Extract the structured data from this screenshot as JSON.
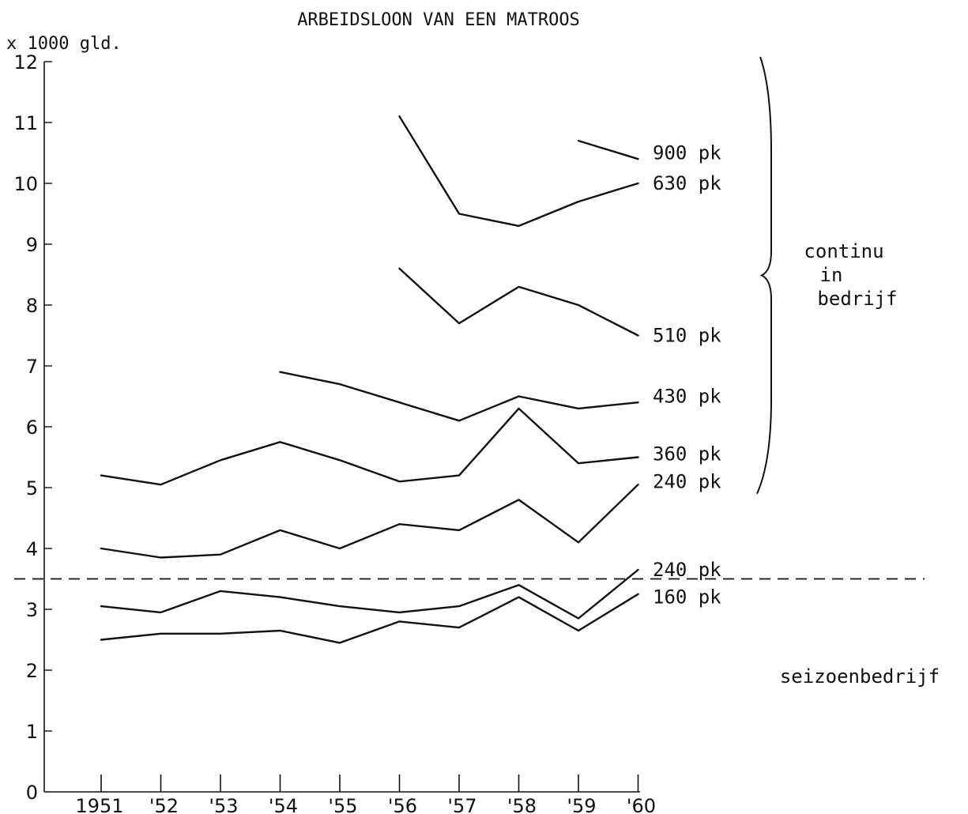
{
  "chart_data": {
    "type": "line",
    "title": "ARBEIDSLOON VAN EEN MATROOS",
    "ylabel": "x 1000 gld.",
    "xlabel": "",
    "ylim": [
      0,
      12
    ],
    "yticks": [
      0,
      1,
      2,
      3,
      4,
      5,
      6,
      7,
      8,
      9,
      10,
      11,
      12
    ],
    "categories": [
      "1951",
      "'52",
      "'53",
      "'54",
      "'55",
      "'56",
      "'57",
      "'58",
      "'59",
      "'60"
    ],
    "grid": false,
    "reference_line": {
      "value": 3.5,
      "style": "dashed"
    },
    "series": [
      {
        "name": "900 pk",
        "values": [
          null,
          null,
          null,
          null,
          null,
          11.1,
          9.5,
          9.3,
          9.7,
          10.0
        ]
      },
      {
        "name": "630 pk",
        "values": [
          null,
          null,
          null,
          null,
          null,
          null,
          null,
          null,
          10.7,
          10.4
        ]
      },
      {
        "name": "510 pk",
        "values": [
          null,
          null,
          null,
          null,
          null,
          8.6,
          7.7,
          8.3,
          8.0,
          7.5
        ]
      },
      {
        "name": "430 pk",
        "values": [
          null,
          null,
          null,
          6.9,
          6.7,
          6.4,
          6.1,
          6.5,
          6.3,
          6.4
        ]
      },
      {
        "name": "360 pk",
        "values": [
          5.2,
          5.05,
          5.45,
          5.75,
          5.45,
          5.1,
          5.2,
          6.3,
          5.4,
          5.5
        ]
      },
      {
        "name": "240 pk",
        "values": [
          4.0,
          3.85,
          3.9,
          4.3,
          4.0,
          4.4,
          4.3,
          4.8,
          4.1,
          5.05
        ]
      },
      {
        "name": "240 pk",
        "values": [
          3.05,
          2.95,
          3.3,
          3.2,
          3.05,
          2.95,
          3.05,
          3.4,
          2.85,
          3.65
        ]
      },
      {
        "name": "160 pk",
        "values": [
          2.5,
          2.6,
          2.6,
          2.65,
          2.45,
          2.8,
          2.7,
          3.2,
          2.65,
          3.25
        ]
      }
    ],
    "label_y": [
      10.5,
      10.0,
      7.5,
      6.5,
      5.55,
      5.1,
      3.65,
      3.2
    ],
    "groups": [
      {
        "label_lines": [
          "continu",
          "in",
          "bedrijf"
        ],
        "ymin": 4.9,
        "ymax": 12.0
      },
      {
        "label_lines": [
          "seizoenbedrijf"
        ]
      }
    ]
  }
}
